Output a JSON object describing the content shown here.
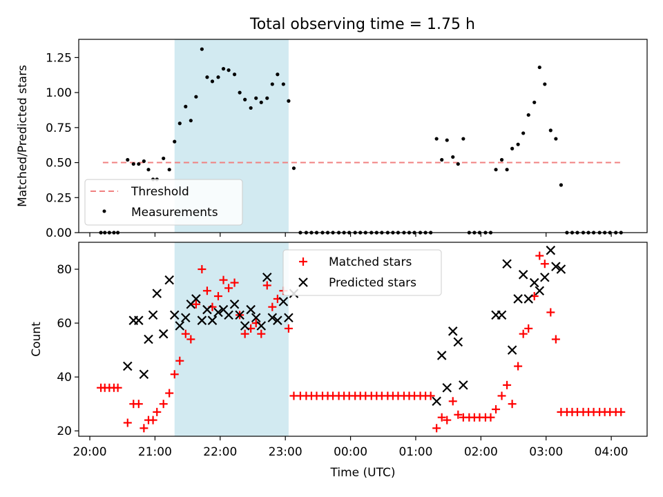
{
  "figure": {
    "title": "Total observing time = 1.75 h"
  },
  "chart_data": [
    {
      "type": "scatter",
      "panel": "top",
      "title": "Total observing time = 1.75 h",
      "xlabel": "",
      "ylabel": "Matched/Predicted stars",
      "xlim_hours": [
        19.83,
        28.55
      ],
      "ylim": [
        0,
        1.38
      ],
      "yticks": [
        0,
        0.25,
        0.5,
        0.75,
        1.0,
        1.25
      ],
      "ytick_labels": [
        "0.00",
        "0.25",
        "0.50",
        "0.75",
        "1.00",
        "1.25"
      ],
      "grid": false,
      "legend_position": "lower-left",
      "shaded_span_hours": [
        21.3,
        23.05
      ],
      "shaded_color": "#add8e6",
      "threshold": {
        "name": "Threshold",
        "y": 0.5,
        "x_range_hours": [
          20.2,
          28.15
        ],
        "color": "#f08080"
      },
      "series": [
        {
          "name": "Measurements",
          "color": "#000000",
          "points": [
            [
              20.17,
              0
            ],
            [
              20.23,
              0
            ],
            [
              20.3,
              0
            ],
            [
              20.37,
              0
            ],
            [
              20.43,
              0
            ],
            [
              20.58,
              0.52
            ],
            [
              20.67,
              0.49
            ],
            [
              20.75,
              0.49
            ],
            [
              20.83,
              0.51
            ],
            [
              20.9,
              0.45
            ],
            [
              20.97,
              0.38
            ],
            [
              21.03,
              0.38
            ],
            [
              21.13,
              0.53
            ],
            [
              21.22,
              0.45
            ],
            [
              21.3,
              0.65
            ],
            [
              21.38,
              0.78
            ],
            [
              21.47,
              0.9
            ],
            [
              21.55,
              0.8
            ],
            [
              21.63,
              0.97
            ],
            [
              21.72,
              1.31
            ],
            [
              21.8,
              1.11
            ],
            [
              21.88,
              1.08
            ],
            [
              21.97,
              1.11
            ],
            [
              22.05,
              1.17
            ],
            [
              22.13,
              1.16
            ],
            [
              22.22,
              1.13
            ],
            [
              22.3,
              1.0
            ],
            [
              22.38,
              0.95
            ],
            [
              22.47,
              0.89
            ],
            [
              22.55,
              0.96
            ],
            [
              22.63,
              0.93
            ],
            [
              22.72,
              0.96
            ],
            [
              22.8,
              1.06
            ],
            [
              22.88,
              1.13
            ],
            [
              22.97,
              1.06
            ],
            [
              23.05,
              0.94
            ],
            [
              23.13,
              0.46
            ],
            [
              23.23,
              0
            ],
            [
              23.32,
              0
            ],
            [
              23.4,
              0
            ],
            [
              23.48,
              0
            ],
            [
              23.57,
              0
            ],
            [
              23.65,
              0
            ],
            [
              23.73,
              0
            ],
            [
              23.82,
              0
            ],
            [
              23.9,
              0
            ],
            [
              23.98,
              0
            ],
            [
              24.07,
              0
            ],
            [
              24.15,
              0
            ],
            [
              24.23,
              0
            ],
            [
              24.32,
              0
            ],
            [
              24.4,
              0
            ],
            [
              24.48,
              0
            ],
            [
              24.57,
              0
            ],
            [
              24.65,
              0
            ],
            [
              24.73,
              0
            ],
            [
              24.82,
              0
            ],
            [
              24.9,
              0
            ],
            [
              24.98,
              0
            ],
            [
              25.07,
              0
            ],
            [
              25.15,
              0
            ],
            [
              25.23,
              0
            ],
            [
              25.32,
              0.67
            ],
            [
              25.4,
              0.52
            ],
            [
              25.48,
              0.66
            ],
            [
              25.57,
              0.54
            ],
            [
              25.65,
              0.49
            ],
            [
              25.73,
              0.67
            ],
            [
              25.82,
              0
            ],
            [
              25.9,
              0
            ],
            [
              25.98,
              0
            ],
            [
              26.07,
              0
            ],
            [
              26.15,
              0
            ],
            [
              26.23,
              0.45
            ],
            [
              26.32,
              0.52
            ],
            [
              26.4,
              0.45
            ],
            [
              26.48,
              0.6
            ],
            [
              26.57,
              0.63
            ],
            [
              26.65,
              0.71
            ],
            [
              26.73,
              0.84
            ],
            [
              26.82,
              0.93
            ],
            [
              26.9,
              1.18
            ],
            [
              26.98,
              1.06
            ],
            [
              27.07,
              0.73
            ],
            [
              27.15,
              0.67
            ],
            [
              27.23,
              0.34
            ],
            [
              27.32,
              0
            ],
            [
              27.4,
              0
            ],
            [
              27.48,
              0
            ],
            [
              27.57,
              0
            ],
            [
              27.65,
              0
            ],
            [
              27.73,
              0
            ],
            [
              27.82,
              0
            ],
            [
              27.9,
              0
            ],
            [
              27.98,
              0
            ],
            [
              28.07,
              0
            ],
            [
              28.15,
              0
            ]
          ]
        }
      ]
    },
    {
      "type": "scatter",
      "panel": "bottom",
      "xlabel": "Time (UTC)",
      "ylabel": "Count",
      "xlim_hours": [
        19.83,
        28.55
      ],
      "ylim": [
        18,
        90
      ],
      "yticks": [
        20,
        40,
        60,
        80
      ],
      "ytick_labels": [
        "20",
        "40",
        "60",
        "80"
      ],
      "xticks_hours": [
        20,
        21,
        22,
        23,
        24,
        25,
        26,
        27,
        28
      ],
      "xtick_labels": [
        "20:00",
        "21:00",
        "22:00",
        "23:00",
        "00:00",
        "01:00",
        "02:00",
        "03:00",
        "04:00"
      ],
      "grid": false,
      "legend_position": "top-center",
      "shaded_span_hours": [
        21.3,
        23.05
      ],
      "series": [
        {
          "name": "Matched stars",
          "marker": "+",
          "color": "#ff0000",
          "points": [
            [
              20.17,
              36
            ],
            [
              20.23,
              36
            ],
            [
              20.3,
              36
            ],
            [
              20.37,
              36
            ],
            [
              20.43,
              36
            ],
            [
              20.58,
              23
            ],
            [
              20.67,
              30
            ],
            [
              20.75,
              30
            ],
            [
              20.83,
              21
            ],
            [
              20.9,
              24
            ],
            [
              20.97,
              24
            ],
            [
              21.03,
              27
            ],
            [
              21.13,
              30
            ],
            [
              21.22,
              34
            ],
            [
              21.3,
              41
            ],
            [
              21.38,
              46
            ],
            [
              21.47,
              56
            ],
            [
              21.55,
              54
            ],
            [
              21.63,
              67
            ],
            [
              21.72,
              80
            ],
            [
              21.8,
              72
            ],
            [
              21.88,
              66
            ],
            [
              21.97,
              70
            ],
            [
              22.05,
              76
            ],
            [
              22.13,
              73
            ],
            [
              22.22,
              75
            ],
            [
              22.3,
              63
            ],
            [
              22.38,
              56
            ],
            [
              22.47,
              58
            ],
            [
              22.55,
              60
            ],
            [
              22.63,
              56
            ],
            [
              22.72,
              74
            ],
            [
              22.8,
              66
            ],
            [
              22.88,
              69
            ],
            [
              22.97,
              72
            ],
            [
              23.05,
              58
            ],
            [
              23.13,
              33
            ],
            [
              23.23,
              33
            ],
            [
              23.32,
              33
            ],
            [
              23.4,
              33
            ],
            [
              23.48,
              33
            ],
            [
              23.57,
              33
            ],
            [
              23.65,
              33
            ],
            [
              23.73,
              33
            ],
            [
              23.82,
              33
            ],
            [
              23.9,
              33
            ],
            [
              23.98,
              33
            ],
            [
              24.07,
              33
            ],
            [
              24.15,
              33
            ],
            [
              24.23,
              33
            ],
            [
              24.32,
              33
            ],
            [
              24.4,
              33
            ],
            [
              24.48,
              33
            ],
            [
              24.57,
              33
            ],
            [
              24.65,
              33
            ],
            [
              24.73,
              33
            ],
            [
              24.82,
              33
            ],
            [
              24.9,
              33
            ],
            [
              24.98,
              33
            ],
            [
              25.07,
              33
            ],
            [
              25.15,
              33
            ],
            [
              25.23,
              33
            ],
            [
              25.32,
              21
            ],
            [
              25.4,
              25
            ],
            [
              25.48,
              24
            ],
            [
              25.57,
              31
            ],
            [
              25.65,
              26
            ],
            [
              25.73,
              25
            ],
            [
              25.82,
              25
            ],
            [
              25.9,
              25
            ],
            [
              25.98,
              25
            ],
            [
              26.07,
              25
            ],
            [
              26.15,
              25
            ],
            [
              26.23,
              28
            ],
            [
              26.32,
              33
            ],
            [
              26.4,
              37
            ],
            [
              26.48,
              30
            ],
            [
              26.57,
              44
            ],
            [
              26.65,
              56
            ],
            [
              26.73,
              58
            ],
            [
              26.82,
              70
            ],
            [
              26.9,
              85
            ],
            [
              26.98,
              82
            ],
            [
              27.07,
              64
            ],
            [
              27.15,
              54
            ],
            [
              27.23,
              27
            ],
            [
              27.32,
              27
            ],
            [
              27.4,
              27
            ],
            [
              27.48,
              27
            ],
            [
              27.57,
              27
            ],
            [
              27.65,
              27
            ],
            [
              27.73,
              27
            ],
            [
              27.82,
              27
            ],
            [
              27.9,
              27
            ],
            [
              27.98,
              27
            ],
            [
              28.07,
              27
            ],
            [
              28.15,
              27
            ]
          ]
        },
        {
          "name": "Predicted stars",
          "marker": "x",
          "color": "#000000",
          "points": [
            [
              20.58,
              44
            ],
            [
              20.67,
              61
            ],
            [
              20.75,
              61
            ],
            [
              20.83,
              41
            ],
            [
              20.9,
              54
            ],
            [
              20.97,
              63
            ],
            [
              21.03,
              71
            ],
            [
              21.13,
              56
            ],
            [
              21.22,
              76
            ],
            [
              21.3,
              63
            ],
            [
              21.38,
              59
            ],
            [
              21.47,
              62
            ],
            [
              21.55,
              67
            ],
            [
              21.63,
              69
            ],
            [
              21.72,
              61
            ],
            [
              21.8,
              65
            ],
            [
              21.88,
              61
            ],
            [
              21.97,
              64
            ],
            [
              22.05,
              65
            ],
            [
              22.13,
              63
            ],
            [
              22.22,
              67
            ],
            [
              22.3,
              63
            ],
            [
              22.38,
              59
            ],
            [
              22.47,
              65
            ],
            [
              22.55,
              62
            ],
            [
              22.63,
              59
            ],
            [
              22.72,
              77
            ],
            [
              22.8,
              62
            ],
            [
              22.88,
              61
            ],
            [
              22.97,
              68
            ],
            [
              23.05,
              62
            ],
            [
              23.13,
              71
            ],
            [
              25.32,
              31
            ],
            [
              25.4,
              48
            ],
            [
              25.48,
              36
            ],
            [
              25.57,
              57
            ],
            [
              25.65,
              53
            ],
            [
              25.73,
              37
            ],
            [
              26.23,
              63
            ],
            [
              26.32,
              63
            ],
            [
              26.4,
              82
            ],
            [
              26.48,
              50
            ],
            [
              26.57,
              69
            ],
            [
              26.65,
              78
            ],
            [
              26.73,
              69
            ],
            [
              26.82,
              75
            ],
            [
              26.9,
              72
            ],
            [
              26.98,
              77
            ],
            [
              27.07,
              87
            ],
            [
              27.15,
              81
            ],
            [
              27.23,
              80
            ]
          ]
        }
      ]
    }
  ]
}
